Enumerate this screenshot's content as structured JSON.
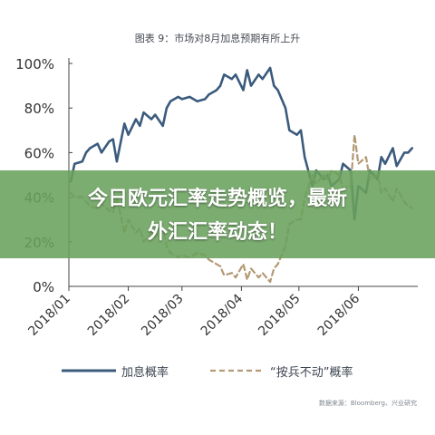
{
  "title": "图表 9：市场对8月加息预期有所上升",
  "source": "数据来源：Bloomberg、兴业研究",
  "banner": {
    "line1": "今日欧元汇率走势概览，最新",
    "line2": "外汇汇率动态！"
  },
  "chart_data": {
    "type": "line",
    "title": "图表 9：市场对8月加息预期有所上升",
    "xlabel": "",
    "ylabel": "",
    "x_ticks": [
      "2018/01",
      "2018/02",
      "2018/03",
      "2018/04",
      "2018/05",
      "2018/06"
    ],
    "y_ticks": [
      "0%",
      "20%",
      "40%",
      "60%",
      "80%",
      "100%"
    ],
    "ylim": [
      0,
      100
    ],
    "grid": false,
    "legend": "bottom",
    "series": [
      {
        "name": "加息概率",
        "color": "#3b5b7d",
        "style": "solid",
        "x": [
          "2018/01/02",
          "2018/01/04",
          "2018/01/08",
          "2018/01/10",
          "2018/01/12",
          "2018/01/16",
          "2018/01/18",
          "2018/01/22",
          "2018/01/24",
          "2018/01/26",
          "2018/01/30",
          "2018/02/01",
          "2018/02/05",
          "2018/02/07",
          "2018/02/09",
          "2018/02/13",
          "2018/02/15",
          "2018/02/19",
          "2018/02/21",
          "2018/02/23",
          "2018/02/27",
          "2018/03/01",
          "2018/03/05",
          "2018/03/07",
          "2018/03/09",
          "2018/03/13",
          "2018/03/15",
          "2018/03/19",
          "2018/03/21",
          "2018/03/23",
          "2018/03/27",
          "2018/03/29",
          "2018/04/02",
          "2018/04/04",
          "2018/04/06",
          "2018/04/10",
          "2018/04/12",
          "2018/04/16",
          "2018/04/18",
          "2018/04/20",
          "2018/04/24",
          "2018/04/26",
          "2018/04/30",
          "2018/05/02",
          "2018/05/04",
          "2018/05/08",
          "2018/05/10",
          "2018/05/14",
          "2018/05/16",
          "2018/05/18",
          "2018/05/22",
          "2018/05/24",
          "2018/05/28",
          "2018/05/30",
          "2018/06/01",
          "2018/06/05",
          "2018/06/07",
          "2018/06/11",
          "2018/06/13",
          "2018/06/15",
          "2018/06/19",
          "2018/06/21",
          "2018/06/25",
          "2018/06/27",
          "2018/06/29"
        ],
        "values": [
          47,
          55,
          56,
          60,
          62,
          64,
          60,
          65,
          66,
          56,
          73,
          68,
          75,
          72,
          78,
          75,
          77,
          72,
          80,
          83,
          85,
          84,
          85,
          84,
          83,
          84,
          86,
          88,
          90,
          95,
          93,
          95,
          88,
          97,
          90,
          95,
          93,
          98,
          90,
          88,
          80,
          70,
          68,
          70,
          58,
          45,
          52,
          48,
          50,
          45,
          48,
          55,
          52,
          30,
          45,
          42,
          52,
          48,
          58,
          55,
          62,
          54,
          60,
          60,
          62
        ]
      },
      {
        "name": "“按兵不动”概率",
        "color": "#b39a74",
        "style": "dashed",
        "x": [
          "2018/01/02",
          "2018/01/04",
          "2018/01/08",
          "2018/01/10",
          "2018/01/12",
          "2018/01/16",
          "2018/01/18",
          "2018/01/22",
          "2018/01/24",
          "2018/01/26",
          "2018/01/30",
          "2018/02/01",
          "2018/02/05",
          "2018/02/07",
          "2018/02/09",
          "2018/02/13",
          "2018/02/15",
          "2018/02/19",
          "2018/02/21",
          "2018/02/23",
          "2018/02/27",
          "2018/03/01",
          "2018/03/05",
          "2018/03/07",
          "2018/03/09",
          "2018/03/13",
          "2018/03/15",
          "2018/03/19",
          "2018/03/21",
          "2018/03/23",
          "2018/03/27",
          "2018/03/29",
          "2018/04/02",
          "2018/04/04",
          "2018/04/06",
          "2018/04/10",
          "2018/04/12",
          "2018/04/16",
          "2018/04/18",
          "2018/04/20",
          "2018/04/24",
          "2018/04/26",
          "2018/04/30",
          "2018/05/02",
          "2018/05/04",
          "2018/05/08",
          "2018/05/10",
          "2018/05/14",
          "2018/05/16",
          "2018/05/18",
          "2018/05/22",
          "2018/05/24",
          "2018/05/28",
          "2018/05/30",
          "2018/06/01",
          "2018/06/05",
          "2018/06/07",
          "2018/06/11",
          "2018/06/13",
          "2018/06/15",
          "2018/06/19",
          "2018/06/21",
          "2018/06/25",
          "2018/06/27",
          "2018/06/29"
        ],
        "values": [
          42,
          40,
          40,
          38,
          36,
          35,
          37,
          34,
          33,
          40,
          24,
          30,
          24,
          26,
          20,
          24,
          22,
          26,
          18,
          15,
          13,
          14,
          13,
          14,
          15,
          14,
          12,
          10,
          9,
          5,
          6,
          4,
          10,
          3,
          8,
          4,
          6,
          2,
          8,
          10,
          18,
          28,
          30,
          30,
          40,
          50,
          46,
          50,
          48,
          52,
          50,
          44,
          45,
          68,
          55,
          58,
          48,
          50,
          42,
          44,
          38,
          44,
          38,
          36,
          35
        ]
      }
    ]
  }
}
